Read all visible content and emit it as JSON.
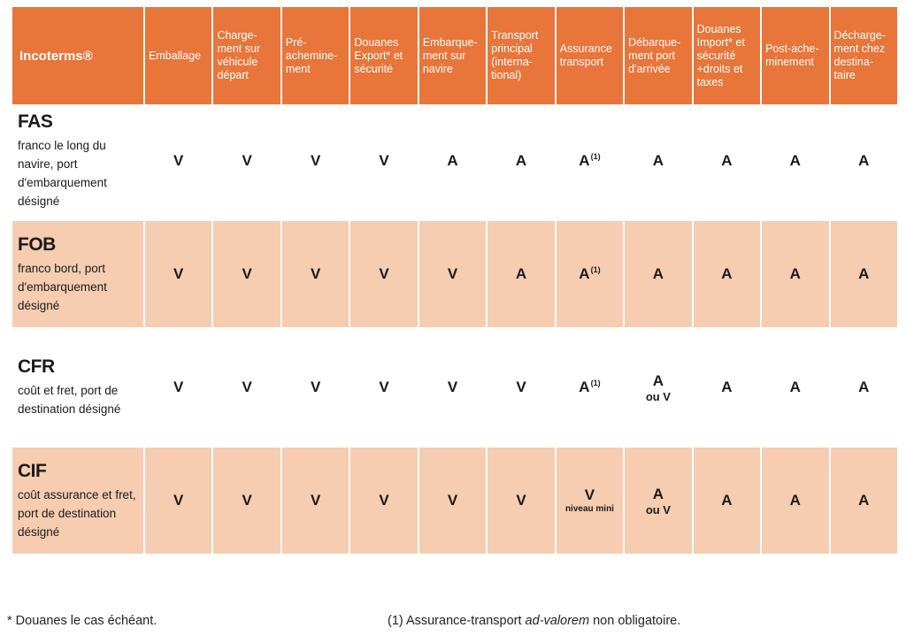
{
  "header": {
    "corner": "Incoterms®",
    "columns": [
      "Emballage",
      "Charge-ment sur véhicule départ",
      "Pré-achemine-ment",
      "Douanes Export* et sécurité",
      "Embarque-ment sur navire",
      "Transport principal (interna-tional)",
      "Assurance transport",
      "Débarque-ment port d'arrivée",
      "Douanes Import* et sécurité +droits et taxes",
      "Post-ache-minement",
      "Décharge-ment chez destina-taire"
    ]
  },
  "rows": [
    {
      "code": "FAS",
      "desc": "franco le long du navire, port d'embarquement désigné",
      "cells": [
        {
          "main": "V"
        },
        {
          "main": "V"
        },
        {
          "main": "V"
        },
        {
          "main": "V"
        },
        {
          "main": "A"
        },
        {
          "main": "A"
        },
        {
          "main": "A",
          "sup": "(1)"
        },
        {
          "main": "A"
        },
        {
          "main": "A"
        },
        {
          "main": "A"
        },
        {
          "main": "A"
        }
      ]
    },
    {
      "code": "FOB",
      "desc": "franco bord, port d'embarquement désigné",
      "cells": [
        {
          "main": "V"
        },
        {
          "main": "V"
        },
        {
          "main": "V"
        },
        {
          "main": "V"
        },
        {
          "main": "V"
        },
        {
          "main": "A"
        },
        {
          "main": "A",
          "sup": "(1)"
        },
        {
          "main": "A"
        },
        {
          "main": "A"
        },
        {
          "main": "A"
        },
        {
          "main": "A"
        }
      ]
    },
    {
      "code": "CFR",
      "desc": "coût et fret, port de destination désigné",
      "cells": [
        {
          "main": "V"
        },
        {
          "main": "V"
        },
        {
          "main": "V"
        },
        {
          "main": "V"
        },
        {
          "main": "V"
        },
        {
          "main": "V"
        },
        {
          "main": "A",
          "sup": "(1)"
        },
        {
          "main": "A",
          "sub": "ou V",
          "subInline": true
        },
        {
          "main": "A"
        },
        {
          "main": "A"
        },
        {
          "main": "A"
        }
      ]
    },
    {
      "code": "CIF",
      "desc": "coût assurance et fret, port de destination désigné",
      "cells": [
        {
          "main": "V"
        },
        {
          "main": "V"
        },
        {
          "main": "V"
        },
        {
          "main": "V"
        },
        {
          "main": "V"
        },
        {
          "main": "V"
        },
        {
          "main": "V",
          "sub": "niveau mini"
        },
        {
          "main": "A",
          "sub": "ou V",
          "subInline": true
        },
        {
          "main": "A"
        },
        {
          "main": "A"
        },
        {
          "main": "A"
        }
      ]
    }
  ],
  "footnotes": {
    "left": "* Douanes le cas échéant.",
    "right_prefix": "(1) Assurance-transport ",
    "right_italic": "ad-valorem",
    "right_suffix": " non obligatoire."
  },
  "colors": {
    "header_bg": "#e8753a",
    "band_bg": "#f6cdb1"
  }
}
